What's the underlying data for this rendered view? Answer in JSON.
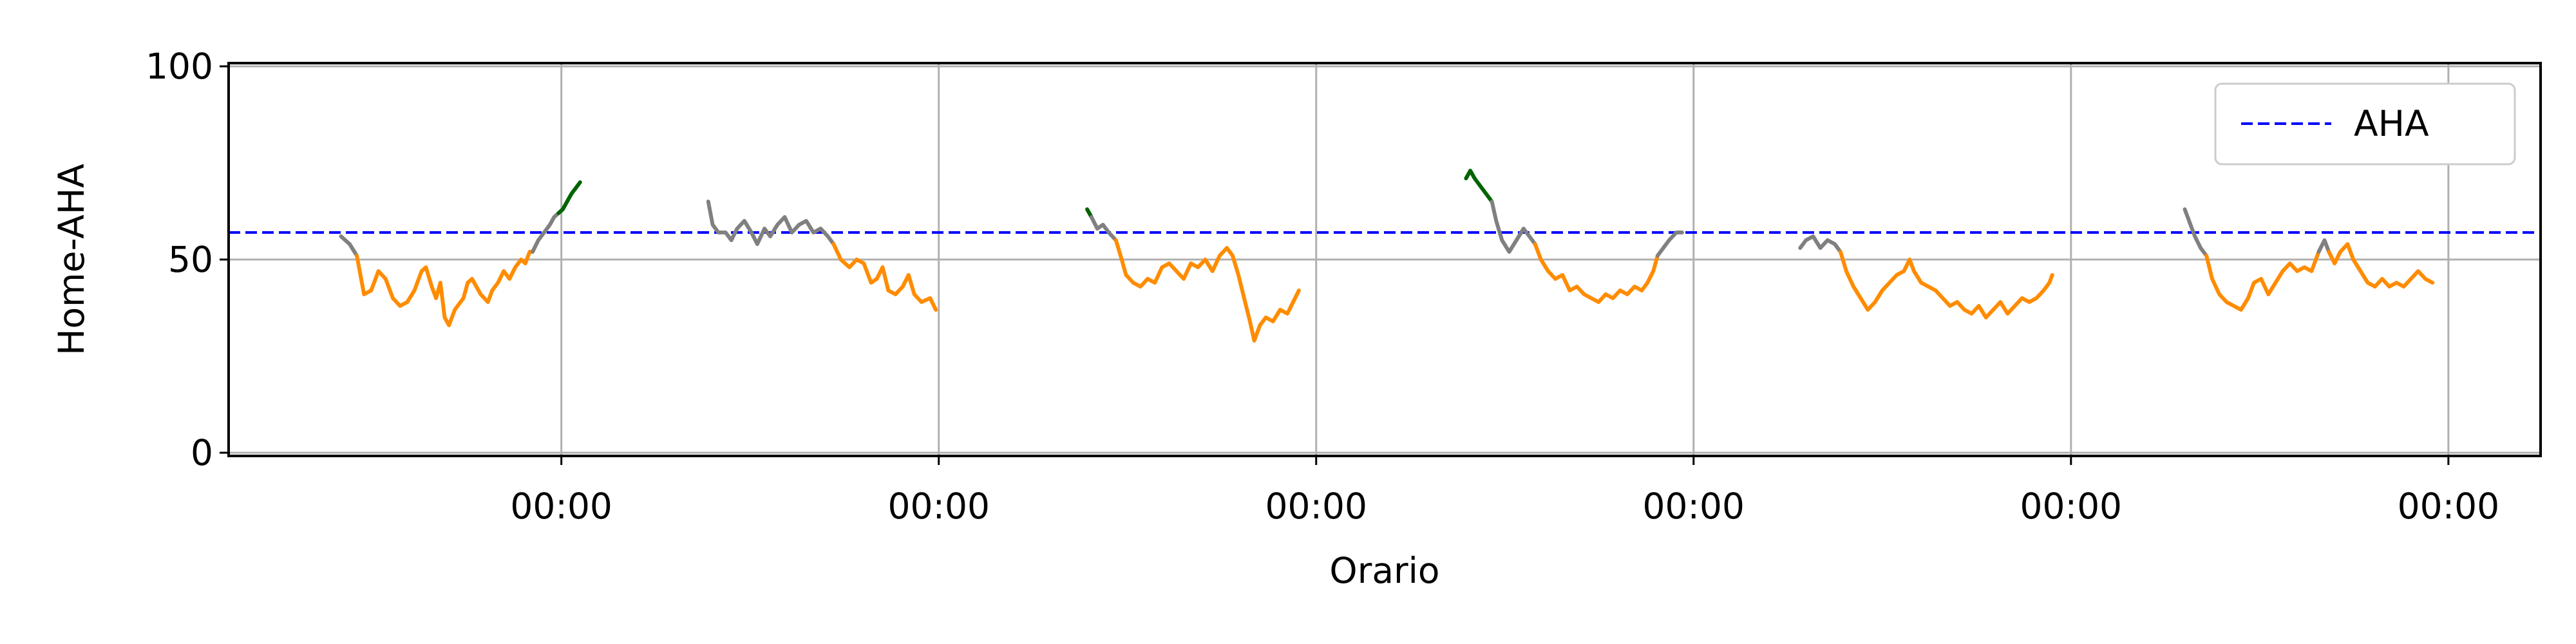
{
  "chart_data": {
    "type": "line",
    "title": "",
    "xlabel": "Orario",
    "ylabel": "Home-AHA",
    "ylim": [
      0,
      100
    ],
    "xlim": [
      -14.3,
      146.2
    ],
    "x_unit": "hours",
    "y_ticks": [
      {
        "value": 0,
        "label": "0"
      },
      {
        "value": 50,
        "label": "50"
      },
      {
        "value": 100,
        "label": "100"
      }
    ],
    "x_ticks": [
      {
        "value": 8.8,
        "label": "00:00"
      },
      {
        "value": 35,
        "label": "00:00"
      },
      {
        "value": 61.2,
        "label": "00:00"
      },
      {
        "value": 87.4,
        "label": "00:00"
      },
      {
        "value": 113.6,
        "label": "00:00"
      },
      {
        "value": 139.8,
        "label": "00:00"
      }
    ],
    "grid": true,
    "legend": {
      "placement": "top-right",
      "entries": [
        {
          "label": "AHA",
          "color": "#0000ff",
          "style": "dashed"
        }
      ]
    },
    "reference_line": {
      "name": "AHA",
      "y": 57,
      "color": "#0000ff"
    },
    "colors": {
      "orange": "#ff8c00",
      "gray": "#808080",
      "green": "#006400"
    },
    "segments": [
      {
        "color": "#808080",
        "points": [
          [
            -6.5,
            56
          ],
          [
            -5.9,
            54
          ],
          [
            -5.4,
            51
          ]
        ]
      },
      {
        "color": "#ff8c00",
        "points": [
          [
            -5.4,
            51
          ],
          [
            -5.1,
            45
          ],
          [
            -4.9,
            41
          ],
          [
            -4.4,
            42
          ],
          [
            -3.9,
            47
          ],
          [
            -3.4,
            45
          ],
          [
            -2.9,
            40
          ],
          [
            -2.4,
            38
          ],
          [
            -1.9,
            39
          ],
          [
            -1.4,
            42
          ],
          [
            -0.9,
            47
          ],
          [
            -0.6,
            48
          ],
          [
            -0.2,
            43
          ],
          [
            0.1,
            40
          ],
          [
            0.4,
            44
          ],
          [
            0.7,
            35
          ],
          [
            1.0,
            33
          ],
          [
            1.4,
            37
          ],
          [
            2.0,
            40
          ],
          [
            2.3,
            44
          ],
          [
            2.6,
            45
          ],
          [
            3.2,
            41
          ],
          [
            3.7,
            39
          ],
          [
            4.0,
            42
          ],
          [
            4.4,
            44
          ],
          [
            4.8,
            47
          ],
          [
            5.2,
            45
          ],
          [
            5.6,
            48
          ],
          [
            6.0,
            50
          ],
          [
            6.3,
            49
          ],
          [
            6.6,
            52
          ],
          [
            6.8,
            52
          ]
        ]
      },
      {
        "color": "#808080",
        "points": [
          [
            6.8,
            52
          ],
          [
            7.2,
            55
          ],
          [
            7.6,
            57
          ],
          [
            8.0,
            59
          ],
          [
            8.3,
            61
          ],
          [
            8.6,
            62
          ]
        ]
      },
      {
        "color": "#006400",
        "points": [
          [
            8.6,
            62
          ],
          [
            8.9,
            63
          ],
          [
            9.2,
            65
          ],
          [
            9.5,
            67
          ],
          [
            9.9,
            69
          ],
          [
            10.1,
            70
          ]
        ]
      },
      {
        "color": "#808080",
        "points": [
          [
            19.0,
            65
          ],
          [
            19.3,
            59
          ],
          [
            19.7,
            57
          ],
          [
            20.2,
            57
          ],
          [
            20.6,
            55
          ],
          [
            21.0,
            58
          ],
          [
            21.5,
            60
          ],
          [
            22.0,
            57
          ],
          [
            22.4,
            54
          ],
          [
            22.9,
            58
          ],
          [
            23.3,
            56
          ],
          [
            23.8,
            59
          ],
          [
            24.3,
            61
          ],
          [
            24.8,
            57
          ],
          [
            25.3,
            59
          ],
          [
            25.8,
            60
          ],
          [
            26.3,
            57
          ],
          [
            26.8,
            58
          ],
          [
            27.3,
            56
          ],
          [
            27.7,
            54
          ]
        ]
      },
      {
        "color": "#ff8c00",
        "points": [
          [
            27.7,
            54
          ],
          [
            28.2,
            50
          ],
          [
            28.8,
            48
          ],
          [
            29.3,
            50
          ],
          [
            29.8,
            49
          ],
          [
            30.3,
            44
          ],
          [
            30.7,
            45
          ],
          [
            31.1,
            48
          ],
          [
            31.5,
            42
          ],
          [
            32.0,
            41
          ],
          [
            32.5,
            43
          ],
          [
            32.9,
            46
          ],
          [
            33.3,
            41
          ],
          [
            33.8,
            39
          ],
          [
            34.4,
            40
          ],
          [
            34.8,
            37
          ]
        ]
      },
      {
        "color": "#006400",
        "points": [
          [
            45.3,
            63
          ],
          [
            45.6,
            61
          ]
        ]
      },
      {
        "color": "#808080",
        "points": [
          [
            45.6,
            61
          ],
          [
            46.0,
            58
          ],
          [
            46.4,
            59
          ],
          [
            46.8,
            57
          ],
          [
            47.3,
            55
          ]
        ]
      },
      {
        "color": "#ff8c00",
        "points": [
          [
            47.3,
            55
          ],
          [
            47.7,
            50
          ],
          [
            48.0,
            46
          ],
          [
            48.5,
            44
          ],
          [
            49.0,
            43
          ],
          [
            49.5,
            45
          ],
          [
            50.0,
            44
          ],
          [
            50.5,
            48
          ],
          [
            51.0,
            49
          ],
          [
            51.5,
            47
          ],
          [
            52.0,
            45
          ],
          [
            52.5,
            49
          ],
          [
            53.0,
            48
          ],
          [
            53.5,
            50
          ],
          [
            54.0,
            47
          ],
          [
            54.5,
            51
          ],
          [
            55.0,
            53
          ],
          [
            55.4,
            51
          ],
          [
            55.8,
            46
          ],
          [
            56.2,
            40
          ],
          [
            56.6,
            34
          ],
          [
            56.9,
            29
          ],
          [
            57.3,
            33
          ],
          [
            57.7,
            35
          ],
          [
            58.2,
            34
          ],
          [
            58.7,
            37
          ],
          [
            59.2,
            36
          ],
          [
            59.6,
            39
          ],
          [
            60.0,
            42
          ]
        ]
      },
      {
        "color": "#006400",
        "points": [
          [
            71.6,
            71
          ],
          [
            71.9,
            73
          ],
          [
            72.2,
            71
          ],
          [
            72.6,
            69
          ],
          [
            73.0,
            67
          ],
          [
            73.4,
            65
          ]
        ]
      },
      {
        "color": "#808080",
        "points": [
          [
            73.4,
            65
          ],
          [
            73.7,
            60
          ],
          [
            74.1,
            55
          ],
          [
            74.6,
            52
          ],
          [
            75.1,
            55
          ],
          [
            75.6,
            58
          ],
          [
            76.0,
            56
          ],
          [
            76.4,
            54
          ]
        ]
      },
      {
        "color": "#ff8c00",
        "points": [
          [
            76.4,
            54
          ],
          [
            76.8,
            50
          ],
          [
            77.3,
            47
          ],
          [
            77.8,
            45
          ],
          [
            78.3,
            46
          ],
          [
            78.8,
            42
          ],
          [
            79.3,
            43
          ],
          [
            79.8,
            41
          ],
          [
            80.3,
            40
          ],
          [
            80.8,
            39
          ],
          [
            81.3,
            41
          ],
          [
            81.8,
            40
          ],
          [
            82.3,
            42
          ],
          [
            82.8,
            41
          ],
          [
            83.3,
            43
          ],
          [
            83.8,
            42
          ],
          [
            84.2,
            44
          ],
          [
            84.6,
            47
          ],
          [
            84.9,
            51
          ]
        ]
      },
      {
        "color": "#808080",
        "points": [
          [
            84.9,
            51
          ],
          [
            85.3,
            53
          ],
          [
            85.7,
            55
          ],
          [
            86.2,
            57
          ],
          [
            86.6,
            57
          ]
        ]
      },
      {
        "color": "#808080",
        "points": [
          [
            94.8,
            53
          ],
          [
            95.2,
            55
          ],
          [
            95.7,
            56
          ],
          [
            96.2,
            53
          ],
          [
            96.7,
            55
          ],
          [
            97.2,
            54
          ],
          [
            97.6,
            52
          ]
        ]
      },
      {
        "color": "#ff8c00",
        "points": [
          [
            97.6,
            52
          ],
          [
            98.0,
            47
          ],
          [
            98.5,
            43
          ],
          [
            99.0,
            40
          ],
          [
            99.5,
            37
          ],
          [
            100.0,
            39
          ],
          [
            100.5,
            42
          ],
          [
            101.0,
            44
          ],
          [
            101.5,
            46
          ],
          [
            102.0,
            47
          ],
          [
            102.4,
            50
          ],
          [
            102.7,
            47
          ],
          [
            103.2,
            44
          ],
          [
            103.7,
            43
          ],
          [
            104.2,
            42
          ],
          [
            104.7,
            40
          ],
          [
            105.2,
            38
          ],
          [
            105.7,
            39
          ],
          [
            106.2,
            37
          ],
          [
            106.7,
            36
          ],
          [
            107.2,
            38
          ],
          [
            107.7,
            35
          ],
          [
            108.2,
            37
          ],
          [
            108.7,
            39
          ],
          [
            109.2,
            36
          ],
          [
            109.7,
            38
          ],
          [
            110.2,
            40
          ],
          [
            110.7,
            39
          ],
          [
            111.2,
            40
          ],
          [
            111.7,
            42
          ],
          [
            112.1,
            44
          ],
          [
            112.3,
            46
          ]
        ]
      },
      {
        "color": "#808080",
        "points": [
          [
            121.5,
            63
          ],
          [
            121.8,
            60
          ],
          [
            122.2,
            56
          ],
          [
            122.6,
            53
          ],
          [
            123.0,
            51
          ]
        ]
      },
      {
        "color": "#ff8c00",
        "points": [
          [
            123.0,
            51
          ],
          [
            123.4,
            45
          ],
          [
            123.9,
            41
          ],
          [
            124.4,
            39
          ],
          [
            124.9,
            38
          ],
          [
            125.4,
            37
          ],
          [
            125.9,
            40
          ],
          [
            126.3,
            44
          ],
          [
            126.8,
            45
          ],
          [
            127.3,
            41
          ],
          [
            127.8,
            44
          ],
          [
            128.3,
            47
          ],
          [
            128.8,
            49
          ],
          [
            129.3,
            47
          ],
          [
            129.8,
            48
          ],
          [
            130.3,
            47
          ],
          [
            130.8,
            52
          ]
        ]
      },
      {
        "color": "#808080",
        "points": [
          [
            130.8,
            52
          ],
          [
            131.2,
            55
          ],
          [
            131.5,
            52
          ]
        ]
      },
      {
        "color": "#ff8c00",
        "points": [
          [
            131.5,
            52
          ],
          [
            131.9,
            49
          ],
          [
            132.3,
            52
          ],
          [
            132.8,
            54
          ],
          [
            133.2,
            50
          ],
          [
            133.7,
            47
          ],
          [
            134.2,
            44
          ],
          [
            134.7,
            43
          ],
          [
            135.2,
            45
          ],
          [
            135.7,
            43
          ],
          [
            136.2,
            44
          ],
          [
            136.7,
            43
          ],
          [
            137.2,
            45
          ],
          [
            137.7,
            47
          ],
          [
            138.2,
            45
          ],
          [
            138.7,
            44
          ]
        ]
      }
    ]
  }
}
